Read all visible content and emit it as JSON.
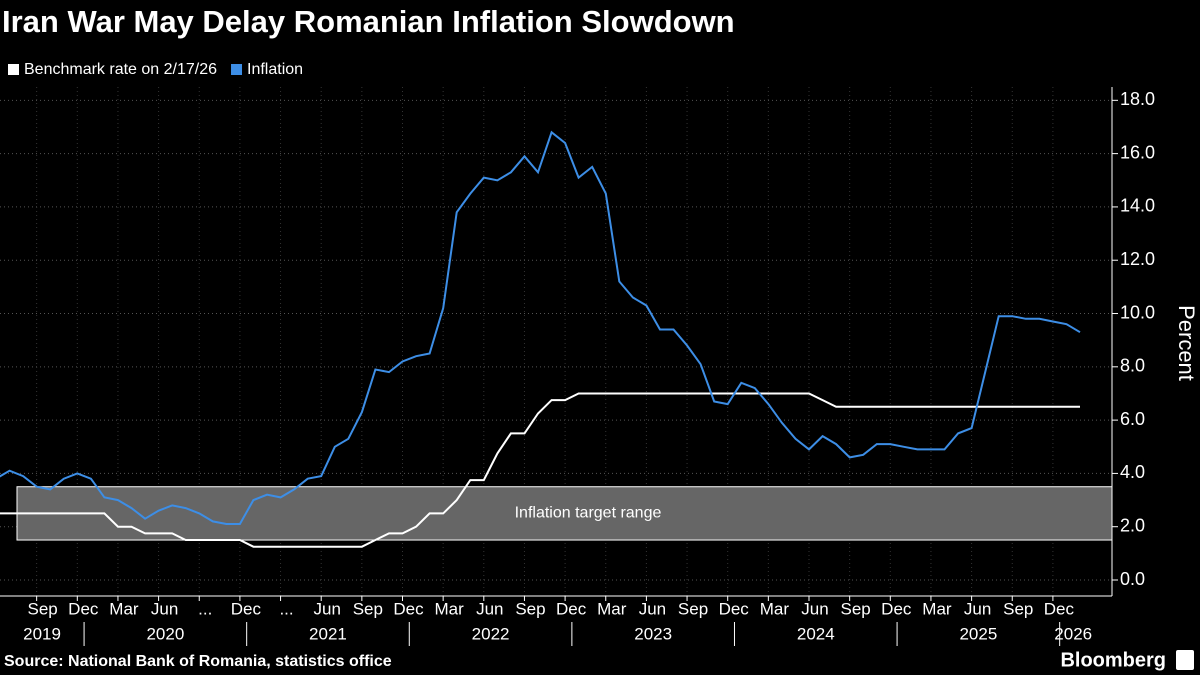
{
  "chart_data": {
    "type": "line",
    "title": "Iran War May Delay Romanian Inflation Slowdown",
    "source": "Source: National Bank of Romania, statistics office",
    "brand": "Bloomberg",
    "y_axis_label": "Percent",
    "x": [
      "2019-06",
      "2019-07",
      "2019-08",
      "2019-09",
      "2019-10",
      "2019-11",
      "2019-12",
      "2020-01",
      "2020-02",
      "2020-03",
      "2020-04",
      "2020-05",
      "2020-06",
      "2020-07",
      "2020-08",
      "2020-09",
      "2020-10",
      "2020-11",
      "2020-12",
      "2021-01",
      "2021-02",
      "2021-03",
      "2021-04",
      "2021-05",
      "2021-06",
      "2021-07",
      "2021-08",
      "2021-09",
      "2021-10",
      "2021-11",
      "2021-12",
      "2022-01",
      "2022-02",
      "2022-03",
      "2022-04",
      "2022-05",
      "2022-06",
      "2022-07",
      "2022-08",
      "2022-09",
      "2022-10",
      "2022-11",
      "2022-12",
      "2023-01",
      "2023-02",
      "2023-03",
      "2023-04",
      "2023-05",
      "2023-06",
      "2023-07",
      "2023-08",
      "2023-09",
      "2023-10",
      "2023-11",
      "2023-12",
      "2024-01",
      "2024-02",
      "2024-03",
      "2024-04",
      "2024-05",
      "2024-06",
      "2024-07",
      "2024-08",
      "2024-09",
      "2024-10",
      "2024-11",
      "2024-12",
      "2025-01",
      "2025-02",
      "2025-03",
      "2025-04",
      "2025-05",
      "2025-06",
      "2025-07",
      "2025-08",
      "2025-09",
      "2025-10",
      "2025-11",
      "2025-12",
      "2026-01",
      "2026-02"
    ],
    "series": [
      {
        "name": "Benchmark rate on 2/17/26",
        "color": "#ffffff",
        "values": [
          2.5,
          2.5,
          2.5,
          2.5,
          2.5,
          2.5,
          2.5,
          2.5,
          2.5,
          2.0,
          2.0,
          1.75,
          1.75,
          1.75,
          1.5,
          1.5,
          1.5,
          1.5,
          1.5,
          1.25,
          1.25,
          1.25,
          1.25,
          1.25,
          1.25,
          1.25,
          1.25,
          1.25,
          1.5,
          1.75,
          1.75,
          2.0,
          2.5,
          2.5,
          3.0,
          3.75,
          3.75,
          4.75,
          5.5,
          5.5,
          6.25,
          6.75,
          6.75,
          7.0,
          7.0,
          7.0,
          7.0,
          7.0,
          7.0,
          7.0,
          7.0,
          7.0,
          7.0,
          7.0,
          7.0,
          7.0,
          7.0,
          7.0,
          7.0,
          7.0,
          7.0,
          6.75,
          6.5,
          6.5,
          6.5,
          6.5,
          6.5,
          6.5,
          6.5,
          6.5,
          6.5,
          6.5,
          6.5,
          6.5,
          6.5,
          6.5,
          6.5,
          6.5,
          6.5,
          6.5,
          6.5
        ]
      },
      {
        "name": "Inflation",
        "color": "#3d8ee6",
        "values": [
          3.8,
          4.1,
          3.9,
          3.5,
          3.4,
          3.8,
          4.0,
          3.8,
          3.1,
          3.0,
          2.7,
          2.3,
          2.6,
          2.8,
          2.7,
          2.5,
          2.2,
          2.1,
          2.1,
          3.0,
          3.2,
          3.1,
          3.4,
          3.8,
          3.9,
          5.0,
          5.3,
          6.3,
          7.9,
          7.8,
          8.2,
          8.4,
          8.5,
          10.2,
          13.8,
          14.5,
          15.1,
          15.0,
          15.3,
          15.9,
          15.3,
          16.8,
          16.4,
          15.1,
          15.5,
          14.5,
          11.2,
          10.6,
          10.3,
          9.4,
          9.4,
          8.8,
          8.1,
          6.7,
          6.6,
          7.4,
          7.2,
          6.6,
          5.9,
          5.3,
          4.9,
          5.4,
          5.1,
          4.6,
          4.7,
          5.1,
          5.1,
          5.0,
          4.9,
          4.9,
          4.9,
          5.5,
          5.7,
          7.8,
          9.9,
          9.9,
          9.8,
          9.8,
          9.7,
          9.6,
          9.3
        ]
      }
    ],
    "target_band": {
      "label": "Inflation target range",
      "range": [
        1.5,
        3.5
      ],
      "color": "#666666"
    },
    "ylim": [
      -0.6,
      18.5
    ],
    "yticks": [
      {
        "value": 0,
        "label": "0.0"
      },
      {
        "value": 2,
        "label": "2.0"
      },
      {
        "value": 4,
        "label": "4.0"
      },
      {
        "value": 6,
        "label": "6.0"
      },
      {
        "value": 8,
        "label": "8.0"
      },
      {
        "value": 10,
        "label": "10.0"
      },
      {
        "value": 12,
        "label": "12.0"
      },
      {
        "value": 14,
        "label": "14.0"
      },
      {
        "value": 16,
        "label": "16.0"
      },
      {
        "value": 18,
        "label": "18.0"
      }
    ],
    "xticks": [
      {
        "value": "2019-09",
        "label": "Sep"
      },
      {
        "value": "2019-12",
        "label": "Dec"
      },
      {
        "value": "2020-03",
        "label": "Mar"
      },
      {
        "value": "2020-06",
        "label": "Jun"
      },
      {
        "value": "2020-09",
        "label": "..."
      },
      {
        "value": "2020-12",
        "label": "Dec"
      },
      {
        "value": "2021-03",
        "label": "..."
      },
      {
        "value": "2021-06",
        "label": "Jun"
      },
      {
        "value": "2021-09",
        "label": "Sep"
      },
      {
        "value": "2021-12",
        "label": "Dec"
      },
      {
        "value": "2022-03",
        "label": "Mar"
      },
      {
        "value": "2022-06",
        "label": "Jun"
      },
      {
        "value": "2022-09",
        "label": "Sep"
      },
      {
        "value": "2022-12",
        "label": "Dec"
      },
      {
        "value": "2023-03",
        "label": "Mar"
      },
      {
        "value": "2023-06",
        "label": "Jun"
      },
      {
        "value": "2023-09",
        "label": "Sep"
      },
      {
        "value": "2023-12",
        "label": "Dec"
      },
      {
        "value": "2024-03",
        "label": "Mar"
      },
      {
        "value": "2024-06",
        "label": "Jun"
      },
      {
        "value": "2024-09",
        "label": "Sep"
      },
      {
        "value": "2024-12",
        "label": "Dec"
      },
      {
        "value": "2025-03",
        "label": "Mar"
      },
      {
        "value": "2025-06",
        "label": "Jun"
      },
      {
        "value": "2025-09",
        "label": "Sep"
      },
      {
        "value": "2025-12",
        "label": "Dec"
      }
    ],
    "year_ticks": [
      "2019",
      "2020",
      "2021",
      "2022",
      "2023",
      "2024",
      "2025",
      "2026"
    ],
    "grid": true,
    "legend": "top-left"
  }
}
